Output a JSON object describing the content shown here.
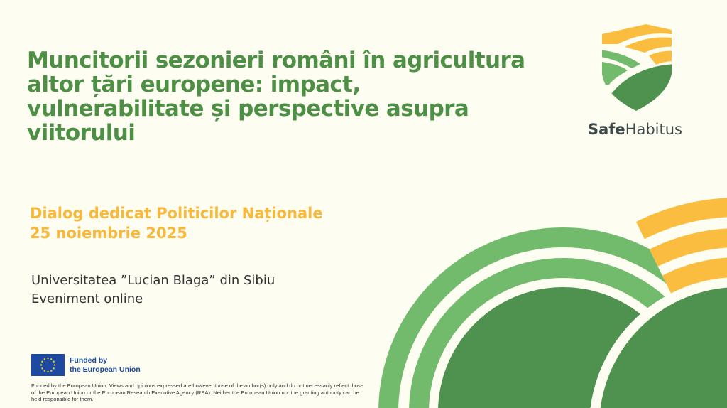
{
  "title": "Muncitorii sezonieri români în agricultura altor țări europene: impact, vulnerabilitate și perspective asupra viitorului",
  "subtitle": {
    "line1": "Dialog dedicat Politicilor Naționale",
    "line2": "25 noiembrie 2025"
  },
  "info": {
    "line1": "Universitatea ”Lucian Blaga” din Sibiu",
    "line2": "Eveniment online"
  },
  "brand": {
    "part1": "Safe",
    "part2": "Habitus"
  },
  "eu": {
    "line1": "Funded by",
    "line2": "the European Union"
  },
  "disclaimer": "Funded by the European Union. Views and opinions expressed are however those of the author(s) only and do not necessarily reflect those of the European Union or the European Research Executive Agency (REA). Neither the European Union nor the granting authority can be held responsible for them.",
  "colors": {
    "green_dark": "#4f914e",
    "green_light": "#72bb6d",
    "yellow": "#fabd40",
    "background": "#fdfdf2"
  }
}
